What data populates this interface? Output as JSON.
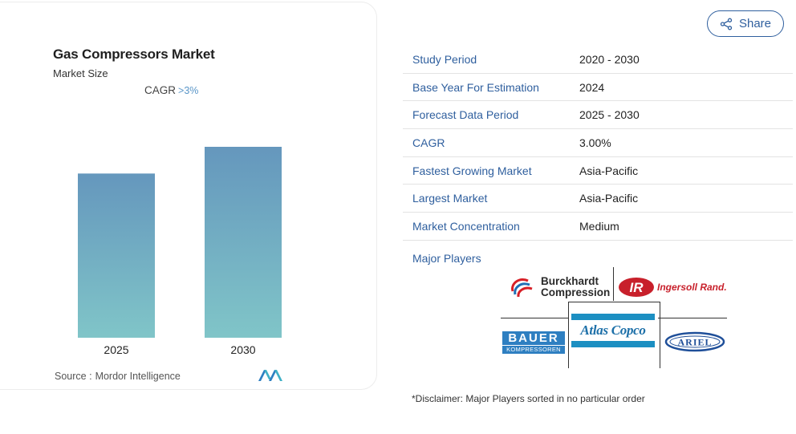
{
  "chart_card": {
    "title": "Gas Compressors Market",
    "subtitle": "Market Size",
    "cagr_label": "CAGR",
    "cagr_value": ">3%",
    "source_label": "Source :",
    "source_name": "Mordor Intelligence"
  },
  "chart_data": {
    "type": "bar",
    "title": "Gas Compressors Market",
    "subtitle": "Market Size",
    "categories": [
      "2025",
      "2030"
    ],
    "values": [
      0.86,
      1.0
    ],
    "value_scale": "relative (no axis printed)",
    "bar_gradient": {
      "top": "#6597bd",
      "bottom": "#80c5c8"
    },
    "xlabel": "",
    "ylabel": "",
    "grid": false,
    "legend": "none"
  },
  "share_button": {
    "label": "Share",
    "icon": "share-icon"
  },
  "stats": [
    {
      "label": "Study Period",
      "value": "2020 - 2030"
    },
    {
      "label": "Base Year For Estimation",
      "value": "2024"
    },
    {
      "label": "Forecast Data Period",
      "value": "2025 - 2030"
    },
    {
      "label": "CAGR",
      "value": "3.00%"
    },
    {
      "label": "Fastest Growing Market",
      "value": "Asia-Pacific"
    },
    {
      "label": "Largest Market",
      "value": "Asia-Pacific"
    },
    {
      "label": "Market Concentration",
      "value": "Medium"
    }
  ],
  "major_players": {
    "label": "Major Players",
    "logos": {
      "burckhardt": {
        "line1": "Burckhardt",
        "line2": "Compression"
      },
      "ingersoll": {
        "text": "Ingersoll Rand."
      },
      "bauer": {
        "top": "BAUER",
        "bottom": "KOMPRESSOREN"
      },
      "atlas": {
        "text": "Atlas Copco"
      },
      "ariel": {
        "text": "ARIEL"
      }
    }
  },
  "disclaimer": "*Disclaimer: Major Players sorted in no particular order",
  "colors": {
    "accent": "#2f5f9e",
    "cagr_value": "#5a96c8"
  }
}
